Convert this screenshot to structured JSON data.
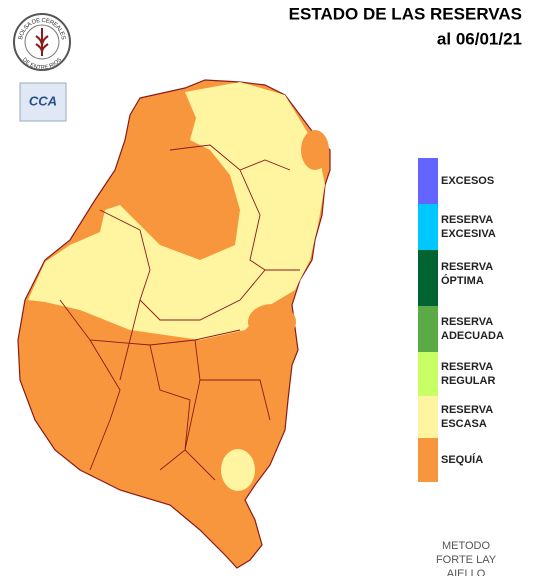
{
  "header": {
    "title": "ESTADO DE LAS RESERVAS",
    "date": "al 06/01/21"
  },
  "logo": {
    "top_text": "BOLSA DE CEREALES",
    "bottom_text": "DE ENTRE RIOS",
    "badge": "CCA"
  },
  "legend": {
    "items": [
      {
        "lines": [
          "EXCESOS"
        ],
        "color": "#6464ff"
      },
      {
        "lines": [
          "RESERVA",
          "EXCESIVA"
        ],
        "color": "#00c8ff"
      },
      {
        "lines": [
          "RESERVA",
          "ÓPTIMA"
        ],
        "color": "#006432"
      },
      {
        "lines": [
          "RESERVA",
          "ADECUADA"
        ],
        "color": "#5aaa46"
      },
      {
        "lines": [
          "RESERVA",
          "REGULAR"
        ],
        "color": "#c8ff64"
      },
      {
        "lines": [
          "RESERVA",
          "ESCASA"
        ],
        "color": "#fff5a0"
      },
      {
        "lines": [
          "SEQUÍA"
        ],
        "color": "#f7963c"
      }
    ]
  },
  "method": {
    "lines": [
      "METODO",
      "FORTE LAY",
      "AIELLO"
    ]
  }
}
